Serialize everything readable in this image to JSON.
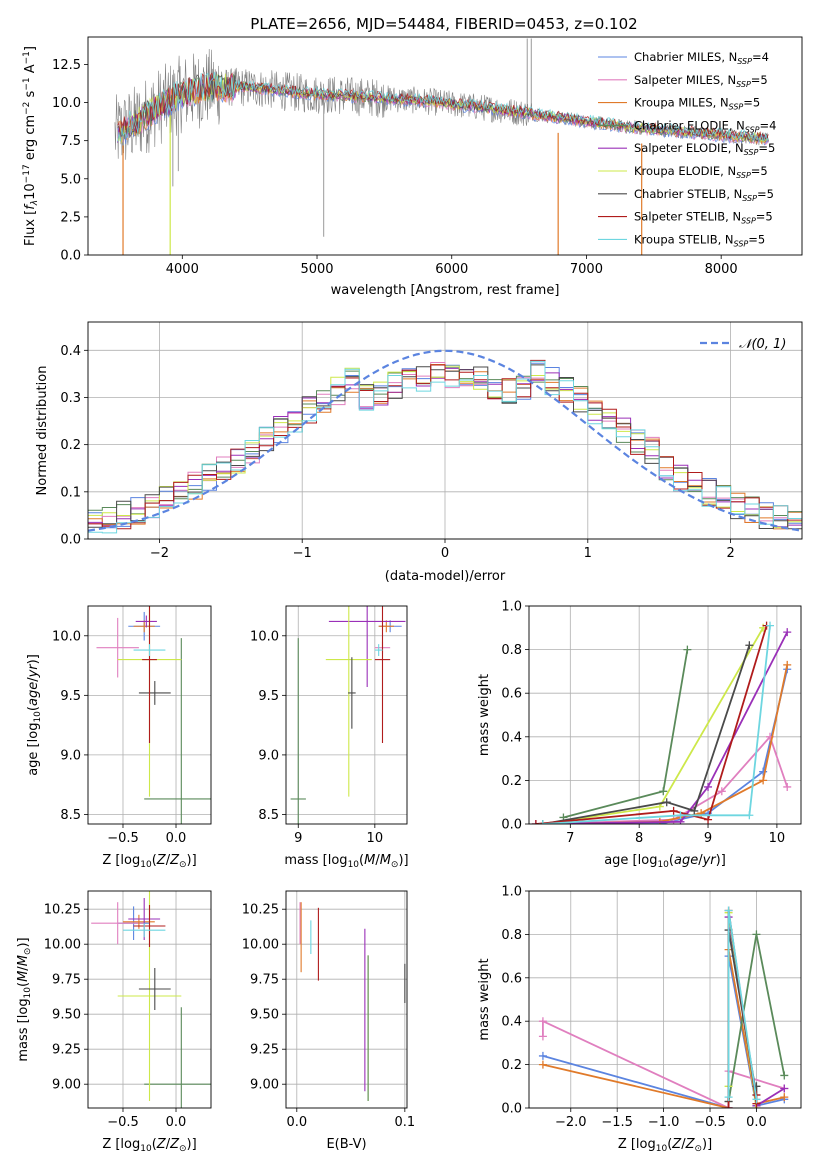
{
  "figure": {
    "title": "PLATE=2656, MJD=54484, FIBERID=0453, z=0.102"
  },
  "series": [
    {
      "name": "Chabrier MILES, N$_{SSP}$=4",
      "label": "Chabrier MILES, N",
      "sub": "SSP",
      "tail": "=4",
      "color": "#5b84e0"
    },
    {
      "name": "Salpeter MILES, N$_{SSP}$=5",
      "label": "Salpeter MILES, N",
      "sub": "SSP",
      "tail": "=5",
      "color": "#e07fbf"
    },
    {
      "name": "Kroupa MILES, N$_{SSP}$=5",
      "label": "Kroupa MILES, N",
      "sub": "SSP",
      "tail": "=5",
      "color": "#e07a2a"
    },
    {
      "name": "Chabrier ELODIE, N$_{SSP}$=4",
      "label": "Chabrier ELODIE, N",
      "sub": "SSP",
      "tail": "=4",
      "color": "#5a8a5a"
    },
    {
      "name": "Salpeter ELODIE, N$_{SSP}$=5",
      "label": "Salpeter ELODIE, N",
      "sub": "SSP",
      "tail": "=5",
      "color": "#9a30b8"
    },
    {
      "name": "Kroupa ELODIE, N$_{SSP}$=5",
      "label": "Kroupa ELODIE, N",
      "sub": "SSP",
      "tail": "=5",
      "color": "#cde84a"
    },
    {
      "name": "Chabrier STELIB, N$_{SSP}$=5",
      "label": "Chabrier STELIB, N",
      "sub": "SSP",
      "tail": "=5",
      "color": "#4a4a4a"
    },
    {
      "name": "Salpeter STELIB, N$_{SSP}$=5",
      "label": "Salpeter STELIB, N",
      "sub": "SSP",
      "tail": "=5",
      "color": "#b01c1c"
    },
    {
      "name": "Kroupa STELIB, N$_{SSP}$=5",
      "label": "Kroupa STELIB, N",
      "sub": "SSP",
      "tail": "=5",
      "color": "#6ed6e0"
    }
  ],
  "chart_data": [
    {
      "id": "spectrum",
      "type": "line",
      "xlabel": "wavelength [Angstrom, rest frame]",
      "ylabel": "Flux [f_λ10^-17 erg cm^-2 s^-1 A^-1]",
      "xlim": [
        3300,
        8600
      ],
      "ylim": [
        0,
        14.3
      ],
      "xticks": [
        "4000",
        "5000",
        "6000",
        "7000",
        "8000"
      ],
      "xtick_values": [
        4000,
        5000,
        6000,
        7000,
        8000
      ],
      "yticks": [
        "0.0",
        "2.5",
        "5.0",
        "7.5",
        "10.0",
        "12.5"
      ],
      "ytick_values": [
        0,
        2.5,
        5,
        7.5,
        10,
        12.5
      ],
      "data_range": [
        3500,
        8350
      ],
      "observed_color": "#808080",
      "continuum": [
        [
          3500,
          7.9
        ],
        [
          3650,
          8.6
        ],
        [
          3800,
          9.6
        ],
        [
          4000,
          10.6
        ],
        [
          4200,
          11.0
        ],
        [
          4500,
          11.0
        ],
        [
          4900,
          10.6
        ],
        [
          5300,
          10.4
        ],
        [
          5800,
          10.1
        ],
        [
          6300,
          9.6
        ],
        [
          6800,
          9.0
        ],
        [
          7300,
          8.4
        ],
        [
          7800,
          8.0
        ],
        [
          8350,
          7.6
        ]
      ],
      "spikes": [
        [
          5050,
          1.2
        ],
        [
          6560,
          14.2
        ],
        [
          6590,
          14.2
        ],
        [
          3930,
          4.5
        ],
        [
          3970,
          5.5
        ]
      ],
      "model_drops": [
        [
          3560,
          0.0
        ],
        [
          3910,
          0.0
        ],
        [
          6790,
          0.0
        ],
        [
          7410,
          0.0
        ]
      ],
      "legend": "top-right",
      "grid": false
    },
    {
      "id": "residual-histogram",
      "type": "histogram",
      "xlabel": "(data-model)/error",
      "ylabel": "Normed distribution",
      "xlim": [
        -2.5,
        2.5
      ],
      "ylim": [
        0,
        0.46
      ],
      "xticks": [
        "−2",
        "−1",
        "0",
        "1",
        "2"
      ],
      "xtick_values": [
        -2,
        -1,
        0,
        1,
        2
      ],
      "yticks": [
        "0.0",
        "0.1",
        "0.2",
        "0.3",
        "0.4"
      ],
      "ytick_values": [
        0,
        0.1,
        0.2,
        0.3,
        0.4
      ],
      "bin_width": 0.1,
      "reference_curve": {
        "name": "𝒩(0, 1)",
        "mean": 0,
        "sigma": 1,
        "color": "#5b84e0",
        "style": "dashed"
      },
      "legend": "top-right",
      "grid": true
    },
    {
      "id": "age-vs-Z",
      "type": "errorbar",
      "xlabel": "Z [log10(Z/Z⊙)]",
      "ylabel": "age [log10(age/yr)]",
      "xlim": [
        -0.83,
        0.33
      ],
      "ylim": [
        8.42,
        10.25
      ],
      "xticks": [
        "−0.5",
        "0.0"
      ],
      "xtick_values": [
        -0.5,
        0
      ],
      "yticks": [
        "8.5",
        "9.0",
        "9.5",
        "10.0"
      ],
      "ytick_values": [
        8.5,
        9.0,
        9.5,
        10.0
      ],
      "points": [
        {
          "s": 0,
          "x": -0.3,
          "y": 10.08,
          "xe": 0.15,
          "ye": 0.12
        },
        {
          "s": 1,
          "x": -0.55,
          "y": 9.9,
          "xe": 0.2,
          "ye": 0.25
        },
        {
          "s": 2,
          "x": -0.3,
          "y": 10.08,
          "xe": 0.1,
          "ye": 0.05
        },
        {
          "s": 3,
          "x": 0.05,
          "y": 8.63,
          "xe": 0.35,
          "ye": 1.35
        },
        {
          "s": 4,
          "x": -0.28,
          "y": 10.12,
          "xe": 0.1,
          "ye": 0.05
        },
        {
          "s": 5,
          "x": -0.25,
          "y": 9.8,
          "xe": 0.3,
          "ye": 1.15
        },
        {
          "s": 6,
          "x": -0.2,
          "y": 9.52,
          "xe": 0.15,
          "ye": 0.1
        },
        {
          "s": 7,
          "x": -0.25,
          "y": 9.8,
          "xe": 0.07,
          "ye": 0.7
        },
        {
          "s": 8,
          "x": -0.25,
          "y": 9.88,
          "xe": 0.15,
          "ye": 0.05
        }
      ],
      "grid": true
    },
    {
      "id": "age-vs-mass",
      "type": "errorbar",
      "xlabel": "mass [log10(M/M⊙)]",
      "ylabel": "",
      "xlim": [
        8.84,
        10.42
      ],
      "ylim": [
        8.42,
        10.25
      ],
      "xticks": [
        "9",
        "10"
      ],
      "xtick_values": [
        9,
        10
      ],
      "yticks": [
        "8.5",
        "9.0",
        "9.5",
        "10.0"
      ],
      "ytick_values": [
        8.5,
        9.0,
        9.5,
        10.0
      ],
      "points": [
        {
          "s": 0,
          "x": 10.2,
          "y": 10.08,
          "xe": 0.15,
          "ye": 0.05
        },
        {
          "s": 1,
          "x": 10.1,
          "y": 9.9,
          "xe": 0.1,
          "ye": 0.05
        },
        {
          "s": 2,
          "x": 10.15,
          "y": 10.08,
          "xe": 0.1,
          "ye": 0.05
        },
        {
          "s": 3,
          "x": 9.0,
          "y": 8.63,
          "xe": 0.1,
          "ye": 1.35
        },
        {
          "s": 4,
          "x": 9.9,
          "y": 10.12,
          "xe": 0.5,
          "ye": 0.55
        },
        {
          "s": 5,
          "x": 9.66,
          "y": 9.8,
          "xe": 0.3,
          "ye": 1.15
        },
        {
          "s": 6,
          "x": 9.7,
          "y": 9.52,
          "xe": 0.05,
          "ye": 0.3
        },
        {
          "s": 7,
          "x": 10.1,
          "y": 9.8,
          "xe": 0.1,
          "ye": 0.7
        },
        {
          "s": 8,
          "x": 10.05,
          "y": 9.88,
          "xe": 0.05,
          "ye": 0.05
        }
      ],
      "grid": true
    },
    {
      "id": "mass-weight-vs-age",
      "type": "line",
      "xlabel": "age [log10(age/yr)]",
      "ylabel": "mass weight",
      "xlim": [
        6.4,
        10.35
      ],
      "ylim": [
        0,
        1.0
      ],
      "xticks": [
        "7",
        "8",
        "9",
        "10"
      ],
      "xtick_values": [
        7,
        8,
        9,
        10
      ],
      "yticks": [
        "0.0",
        "0.2",
        "0.4",
        "0.6",
        "0.8",
        "1.0"
      ],
      "ytick_values": [
        0,
        0.2,
        0.4,
        0.6,
        0.8,
        1.0
      ],
      "lines": [
        {
          "s": 0,
          "x": [
            6.6,
            8.3,
            9.0,
            9.8,
            10.15
          ],
          "y": [
            0.0,
            0.0,
            0.05,
            0.24,
            0.71
          ]
        },
        {
          "s": 1,
          "x": [
            6.6,
            8.5,
            9.2,
            9.9,
            10.15
          ],
          "y": [
            0.0,
            0.02,
            0.15,
            0.4,
            0.17
          ]
        },
        {
          "s": 2,
          "x": [
            6.6,
            8.3,
            8.9,
            9.8,
            10.15
          ],
          "y": [
            0.0,
            0.01,
            0.05,
            0.2,
            0.73
          ]
        },
        {
          "s": 3,
          "x": [
            6.9,
            8.35,
            8.7
          ],
          "y": [
            0.03,
            0.15,
            0.8
          ]
        },
        {
          "s": 4,
          "x": [
            6.5,
            8.6,
            9.0,
            10.15
          ],
          "y": [
            0.0,
            0.01,
            0.17,
            0.88
          ]
        },
        {
          "s": 5,
          "x": [
            6.6,
            8.3,
            9.8
          ],
          "y": [
            0.0,
            0.08,
            0.9
          ]
        },
        {
          "s": 6,
          "x": [
            6.6,
            8.4,
            8.8,
            9.6
          ],
          "y": [
            0.0,
            0.1,
            0.06,
            0.82
          ]
        },
        {
          "s": 7,
          "x": [
            6.5,
            8.5,
            9.0,
            9.85
          ],
          "y": [
            0.0,
            0.06,
            0.02,
            0.91
          ]
        },
        {
          "s": 8,
          "x": [
            6.6,
            8.6,
            9.6,
            9.9
          ],
          "y": [
            0.0,
            0.04,
            0.04,
            0.91
          ]
        }
      ],
      "grid": true
    },
    {
      "id": "mass-vs-Z",
      "type": "errorbar",
      "xlabel": "Z [log10(Z/Z⊙)]",
      "ylabel": "mass [log10(M/M⊙)]",
      "xlim": [
        -0.83,
        0.33
      ],
      "ylim": [
        8.83,
        10.38
      ],
      "xticks": [
        "−0.5",
        "0.0"
      ],
      "xtick_values": [
        -0.5,
        0
      ],
      "yticks": [
        "9.00",
        "9.25",
        "9.50",
        "9.75",
        "10.00",
        "10.25"
      ],
      "ytick_values": [
        9.0,
        9.25,
        9.5,
        9.75,
        10.0,
        10.25
      ],
      "points": [
        {
          "s": 0,
          "x": -0.4,
          "y": 10.15,
          "xe": 0.15,
          "ye": 0.12
        },
        {
          "s": 1,
          "x": -0.55,
          "y": 10.15,
          "xe": 0.25,
          "ye": 0.15
        },
        {
          "s": 2,
          "x": -0.35,
          "y": 10.16,
          "xe": 0.15,
          "ye": 0.05
        },
        {
          "s": 3,
          "x": 0.05,
          "y": 9.0,
          "xe": 0.35,
          "ye": 0.55
        },
        {
          "s": 4,
          "x": -0.3,
          "y": 10.18,
          "xe": 0.15,
          "ye": 0.15
        },
        {
          "s": 5,
          "x": -0.25,
          "y": 9.63,
          "xe": 0.3,
          "ye": 0.75
        },
        {
          "s": 6,
          "x": -0.2,
          "y": 9.68,
          "xe": 0.15,
          "ye": 0.15
        },
        {
          "s": 7,
          "x": -0.25,
          "y": 10.13,
          "xe": 0.15,
          "ye": 0.15
        },
        {
          "s": 8,
          "x": -0.3,
          "y": 10.1,
          "xe": 0.2,
          "ye": 0.05
        }
      ],
      "grid": true
    },
    {
      "id": "mass-vs-ebv",
      "type": "errorbar",
      "xlabel": "E(B-V)",
      "ylabel": "",
      "xlim": [
        -0.01,
        0.102
      ],
      "ylim": [
        8.83,
        10.38
      ],
      "xticks": [
        "0.0",
        "0.1"
      ],
      "xtick_values": [
        0,
        0.1
      ],
      "yticks": [
        "9.00",
        "9.25",
        "9.50",
        "9.75",
        "10.00",
        "10.25"
      ],
      "ytick_values": [
        9.0,
        9.25,
        9.5,
        9.75,
        10.0,
        10.25
      ],
      "points": [
        {
          "s": 1,
          "x": 0.003,
          "y": 10.15,
          "xe": 0,
          "ye": 0.15
        },
        {
          "s": 2,
          "x": 0.004,
          "y": 10.05,
          "xe": 0,
          "ye": 0.25
        },
        {
          "s": 8,
          "x": 0.013,
          "y": 10.05,
          "xe": 0,
          "ye": 0.12
        },
        {
          "s": 7,
          "x": 0.02,
          "y": 10.0,
          "xe": 0,
          "ye": 0.26
        },
        {
          "s": 4,
          "x": 0.063,
          "y": 9.53,
          "xe": 0,
          "ye": 0.58
        },
        {
          "s": 5,
          "x": 0.066,
          "y": 9.4,
          "xe": 0,
          "ye": 0.52
        },
        {
          "s": 3,
          "x": 0.066,
          "y": 9.4,
          "xe": 0,
          "ye": 0.52
        },
        {
          "s": 6,
          "x": 0.1,
          "y": 9.72,
          "xe": 0,
          "ye": 0.14
        }
      ],
      "grid": true
    },
    {
      "id": "mass-weight-vs-Z",
      "type": "line",
      "xlabel": "Z [log10(Z/Z⊙)]",
      "ylabel": "mass weight",
      "xlim": [
        -2.45,
        0.48
      ],
      "ylim": [
        0,
        1.0
      ],
      "xticks": [
        "−2.0",
        "−1.5",
        "−1.0",
        "−0.5",
        "0.0"
      ],
      "xtick_values": [
        -2.0,
        -1.5,
        -1.0,
        -0.5,
        0.0
      ],
      "yticks": [
        "0.0",
        "0.2",
        "0.4",
        "0.6",
        "0.8",
        "1.0"
      ],
      "ytick_values": [
        0,
        0.2,
        0.4,
        0.6,
        0.8,
        1.0
      ],
      "lines": [
        {
          "s": 0,
          "x": [
            -2.3,
            -0.3,
            -0.3,
            0.0,
            0.3
          ],
          "y": [
            0.24,
            0.0,
            0.7,
            0.01,
            0.04
          ]
        },
        {
          "s": 1,
          "x": [
            -2.3,
            -2.3,
            -0.3,
            -0.3,
            0.3
          ],
          "y": [
            0.33,
            0.4,
            0.0,
            0.17,
            0.09
          ]
        },
        {
          "s": 2,
          "x": [
            -2.3,
            -0.3,
            -0.3,
            0.0,
            0.3
          ],
          "y": [
            0.2,
            0.0,
            0.73,
            0.02,
            0.05
          ]
        },
        {
          "s": 3,
          "x": [
            -0.3,
            0.0,
            0.3
          ],
          "y": [
            0.03,
            0.8,
            0.15
          ]
        },
        {
          "s": 4,
          "x": [
            -0.3,
            -0.3,
            0.0,
            0.3
          ],
          "y": [
            0.0,
            0.88,
            0.01,
            0.09
          ]
        },
        {
          "s": 5,
          "x": [
            -0.3,
            -0.3,
            0.0
          ],
          "y": [
            0.1,
            0.9,
            0.0
          ]
        },
        {
          "s": 6,
          "x": [
            -0.3,
            -0.3,
            0.0,
            0.0
          ],
          "y": [
            0.03,
            0.82,
            0.06,
            0.1
          ]
        },
        {
          "s": 7,
          "x": [
            -0.3,
            -0.3,
            0.0,
            0.0
          ],
          "y": [
            0.0,
            0.91,
            0.02,
            0.06
          ]
        },
        {
          "s": 8,
          "x": [
            -0.3,
            -0.3,
            0.0
          ],
          "y": [
            0.05,
            0.91,
            0.04
          ]
        }
      ],
      "grid": true
    }
  ]
}
